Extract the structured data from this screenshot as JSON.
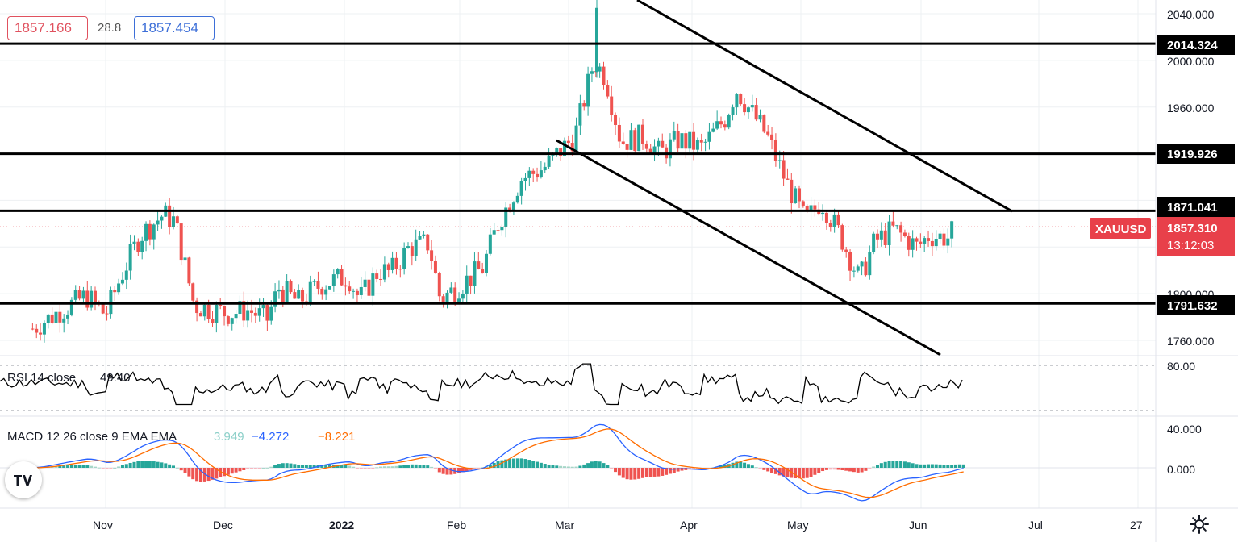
{
  "header": {
    "bid": "1857.166",
    "spread": "28.8",
    "ask": "1857.454"
  },
  "price_axis": {
    "ticks": [
      "2040.000",
      "2000.000",
      "1960.000",
      "1800.000",
      "1760.000"
    ],
    "levels": [
      {
        "value": 2014.324,
        "label": "2014.324"
      },
      {
        "value": 1919.926,
        "label": "1919.926"
      },
      {
        "value": 1871.041,
        "label": "1871.041"
      },
      {
        "value": 1791.632,
        "label": "1791.632"
      }
    ],
    "current": {
      "symbol": "XAUUSD",
      "price": "1857.310",
      "countdown": "13:12:03",
      "value": 1857.31
    }
  },
  "rsi": {
    "label": "RSI 14 close",
    "value": "49.40",
    "ticks": [
      "80.00"
    ]
  },
  "macd": {
    "label": "MACD 12 26 close 9 EMA EMA",
    "hist": "3.949",
    "macd": "−4.272",
    "signal": "−8.221",
    "ticks": [
      "40.000",
      "0.000"
    ]
  },
  "time_axis": [
    "Nov",
    "Dec",
    "2022",
    "Feb",
    "Mar",
    "Apr",
    "May",
    "Jun",
    "Jul",
    "27"
  ],
  "colors": {
    "up": "#26a69a",
    "down": "#ef5350",
    "label_bg": "#e8404a",
    "macd_line": "#2962ff",
    "signal_line": "#ff6d00"
  },
  "icons": {
    "logo": "tradingview-logo-icon",
    "settings": "gear-icon"
  },
  "chart_data": {
    "type": "candlestick",
    "symbol": "XAUUSD",
    "x": [
      "2021-10-13",
      "2021-10-20",
      "2021-10-27",
      "2021-11-01",
      "2021-11-05",
      "2021-11-10",
      "2021-11-16",
      "2021-11-19",
      "2021-11-24",
      "2021-11-30",
      "2021-12-03",
      "2021-12-08",
      "2021-12-13",
      "2021-12-16",
      "2021-12-21",
      "2021-12-27",
      "2022-01-03",
      "2022-01-06",
      "2022-01-11",
      "2022-01-14",
      "2022-01-19",
      "2022-01-24",
      "2022-01-27",
      "2022-02-01",
      "2022-02-07",
      "2022-02-11",
      "2022-02-17",
      "2022-02-23",
      "2022-02-28",
      "2022-03-03",
      "2022-03-08",
      "2022-03-11",
      "2022-03-15",
      "2022-03-21",
      "2022-03-25",
      "2022-03-30",
      "2022-04-05",
      "2022-04-11",
      "2022-04-14",
      "2022-04-19",
      "2022-04-22",
      "2022-04-27",
      "2022-05-02",
      "2022-05-06",
      "2022-05-11",
      "2022-05-16",
      "2022-05-20",
      "2022-05-25",
      "2022-05-31",
      "2022-06-03",
      "2022-06-08",
      "2022-06-10"
    ],
    "close": [
      1770,
      1785,
      1798,
      1782,
      1815,
      1850,
      1868,
      1862,
      1790,
      1785,
      1783,
      1786,
      1778,
      1805,
      1793,
      1808,
      1815,
      1795,
      1820,
      1818,
      1840,
      1843,
      1795,
      1807,
      1822,
      1860,
      1898,
      1908,
      1925,
      1935,
      2000,
      1985,
      1930,
      1935,
      1920,
      1932,
      1925,
      1950,
      1975,
      1950,
      1935,
      1895,
      1862,
      1880,
      1850,
      1812,
      1845,
      1855,
      1840,
      1850,
      1848,
      1857.31
    ],
    "ylim": [
      1745,
      2055
    ],
    "rsi_range": [
      20,
      80
    ],
    "macd_range": [
      -60,
      60
    ],
    "horizontal_levels": [
      2014.324,
      1919.926,
      1871.041,
      1791.632
    ]
  }
}
